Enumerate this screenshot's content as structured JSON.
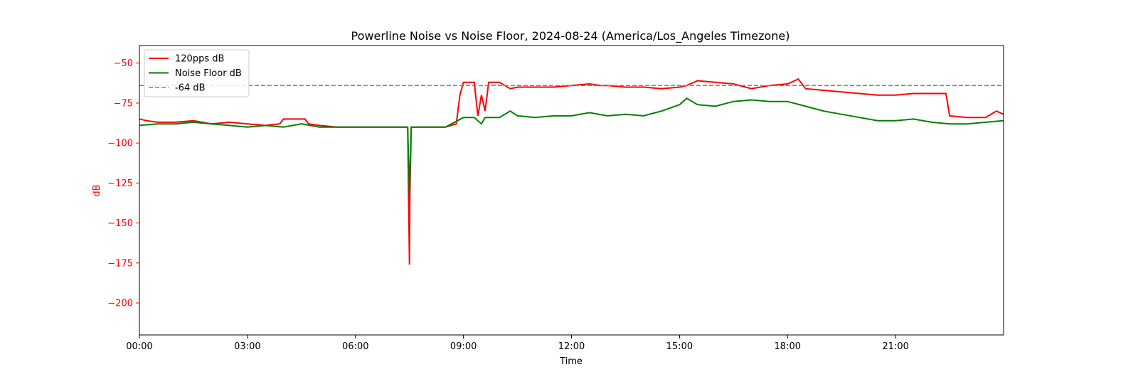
{
  "chart_data": {
    "type": "line",
    "title": "Powerline Noise vs Noise Floor, 2024-08-24 (America/Los_Angeles Timezone)",
    "xlabel": "Time",
    "ylabel": "dB",
    "x_unit": "hours",
    "xlim": [
      0,
      24
    ],
    "ylim": [
      -220,
      -39
    ],
    "x_ticks": [
      {
        "value": 0,
        "label": "00:00"
      },
      {
        "value": 3,
        "label": "03:00"
      },
      {
        "value": 6,
        "label": "06:00"
      },
      {
        "value": 9,
        "label": "09:00"
      },
      {
        "value": 12,
        "label": "12:00"
      },
      {
        "value": 15,
        "label": "15:00"
      },
      {
        "value": 18,
        "label": "18:00"
      },
      {
        "value": 21,
        "label": "21:00"
      }
    ],
    "y_ticks": [
      {
        "value": -50,
        "label": "−50"
      },
      {
        "value": -75,
        "label": "−75"
      },
      {
        "value": -100,
        "label": "−100"
      },
      {
        "value": -125,
        "label": "−125"
      },
      {
        "value": -150,
        "label": "−150"
      },
      {
        "value": -175,
        "label": "−175"
      },
      {
        "value": -200,
        "label": "−200"
      }
    ],
    "grid": false,
    "legend_position": "top-left",
    "ylabel_color": "#ff0000",
    "series": [
      {
        "name": "120pps dB",
        "color": "#ff0000",
        "x": [
          0,
          0.2,
          0.5,
          1.0,
          1.5,
          2.0,
          2.5,
          3.0,
          3.5,
          3.9,
          4.0,
          4.3,
          4.6,
          4.7,
          5.0,
          5.5,
          6.0,
          7.0,
          7.45,
          7.5,
          7.51,
          7.55,
          8.0,
          8.5,
          8.8,
          8.9,
          9.0,
          9.3,
          9.4,
          9.5,
          9.6,
          9.7,
          10.0,
          10.3,
          10.5,
          11.0,
          11.5,
          12.0,
          12.5,
          12.8,
          13.0,
          13.5,
          14.0,
          14.5,
          15.0,
          15.2,
          15.5,
          16.0,
          16.5,
          17.0,
          17.5,
          18.0,
          18.3,
          18.5,
          19.0,
          19.5,
          20.0,
          20.5,
          21.0,
          21.5,
          22.0,
          22.4,
          22.5,
          23.0,
          23.3,
          23.5,
          23.8,
          24.0
        ],
        "y": [
          -85,
          -86,
          -87,
          -87,
          -86,
          -88,
          -87,
          -88,
          -89,
          -88,
          -85,
          -85,
          -85,
          -88,
          -89,
          -90,
          -90,
          -90,
          -90,
          -176,
          -135,
          -90,
          -90,
          -90,
          -88,
          -70,
          -62,
          -62,
          -83,
          -70,
          -80,
          -62,
          -62,
          -66,
          -65,
          -65,
          -65,
          -64,
          -63,
          -64,
          -64,
          -65,
          -65,
          -66,
          -65,
          -64,
          -61,
          -62,
          -63,
          -66,
          -64,
          -63,
          -60,
          -66,
          -67,
          -68,
          -69,
          -70,
          -70,
          -69,
          -69,
          -69,
          -83,
          -84,
          -84,
          -84,
          -80,
          -82
        ]
      },
      {
        "name": "Noise Floor dB",
        "color": "#008000",
        "x": [
          0,
          0.5,
          1.0,
          1.5,
          2.0,
          2.5,
          3.0,
          3.5,
          4.0,
          4.5,
          5.0,
          6.0,
          7.0,
          7.45,
          7.5,
          7.51,
          7.55,
          8.0,
          8.5,
          9.0,
          9.3,
          9.5,
          9.6,
          10.0,
          10.3,
          10.5,
          11.0,
          11.5,
          12.0,
          12.5,
          13.0,
          13.5,
          14.0,
          14.5,
          15.0,
          15.2,
          15.5,
          16.0,
          16.5,
          17.0,
          17.5,
          18.0,
          18.5,
          19.0,
          19.5,
          20.0,
          20.5,
          21.0,
          21.5,
          22.0,
          22.5,
          23.0,
          23.5,
          24.0
        ],
        "y": [
          -89,
          -88,
          -88,
          -87,
          -88,
          -89,
          -90,
          -89,
          -90,
          -88,
          -90,
          -90,
          -90,
          -90,
          -133,
          -120,
          -90,
          -90,
          -90,
          -84,
          -84,
          -88,
          -84,
          -84,
          -80,
          -83,
          -84,
          -83,
          -83,
          -81,
          -83,
          -82,
          -83,
          -80,
          -76,
          -72,
          -76,
          -77,
          -74,
          -73,
          -74,
          -74,
          -77,
          -80,
          -82,
          -84,
          -86,
          -86,
          -85,
          -87,
          -88,
          -88,
          -87,
          -86
        ]
      },
      {
        "name": "-64 dB",
        "color": "#808080",
        "dashed": true,
        "y_constant": -64
      }
    ]
  }
}
